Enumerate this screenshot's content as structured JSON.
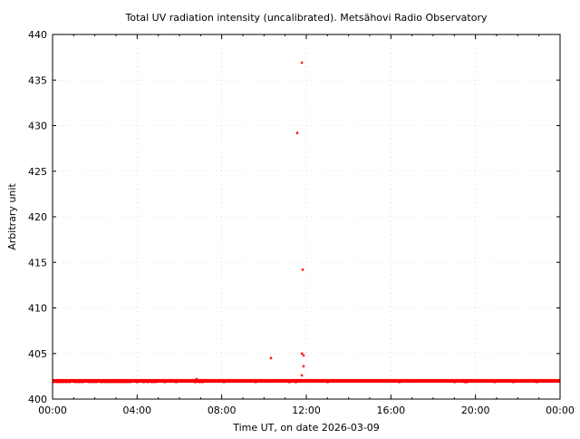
{
  "chart_data": {
    "type": "scatter",
    "title": "Total UV radiation intensity (uncalibrated). Metsähovi Radio Observatory",
    "xlabel": "Time UT, on date 2026-03-09",
    "ylabel": "Arbitrary unit",
    "xlim": [
      0,
      24
    ],
    "ylim": [
      400,
      440
    ],
    "x_ticks": [
      0,
      4,
      8,
      12,
      16,
      20,
      24
    ],
    "x_tick_labels": [
      "00:00",
      "04:00",
      "08:00",
      "12:00",
      "16:00",
      "20:00",
      "00:00"
    ],
    "y_ticks": [
      400,
      405,
      410,
      415,
      420,
      425,
      430,
      435,
      440
    ],
    "y_tick_labels": [
      "400",
      "405",
      "410",
      "415",
      "420",
      "425",
      "430",
      "435",
      "440"
    ],
    "grid": true,
    "color": "#ff0000",
    "baseline": {
      "x_start": 0,
      "x_end": 24,
      "step": 0.02,
      "value": 402.0
    },
    "outliers": [
      {
        "x": 11.79,
        "y": 436.9
      },
      {
        "x": 11.57,
        "y": 429.2
      },
      {
        "x": 11.83,
        "y": 414.2
      },
      {
        "x": 10.33,
        "y": 404.5
      },
      {
        "x": 11.79,
        "y": 405.0
      },
      {
        "x": 11.87,
        "y": 404.8
      },
      {
        "x": 11.87,
        "y": 403.6
      },
      {
        "x": 11.79,
        "y": 402.6
      },
      {
        "x": 6.81,
        "y": 402.2
      }
    ],
    "dips": {
      "y": 401.9,
      "x": [
        0.05,
        0.2,
        0.35,
        0.5,
        0.65,
        0.8,
        1.1,
        1.25,
        1.4,
        1.75,
        1.9,
        2.05,
        2.3,
        2.45,
        2.6,
        2.75,
        2.9,
        3.05,
        3.2,
        3.35,
        3.5,
        3.65,
        4.0,
        4.3,
        4.5,
        4.7,
        4.85,
        5.3,
        5.85,
        6.75,
        6.95,
        7.1,
        8.1,
        9.6,
        11.2,
        11.5,
        13.0,
        16.4,
        19.0,
        19.5,
        19.6,
        20.9,
        21.8,
        22.9
      ]
    }
  }
}
